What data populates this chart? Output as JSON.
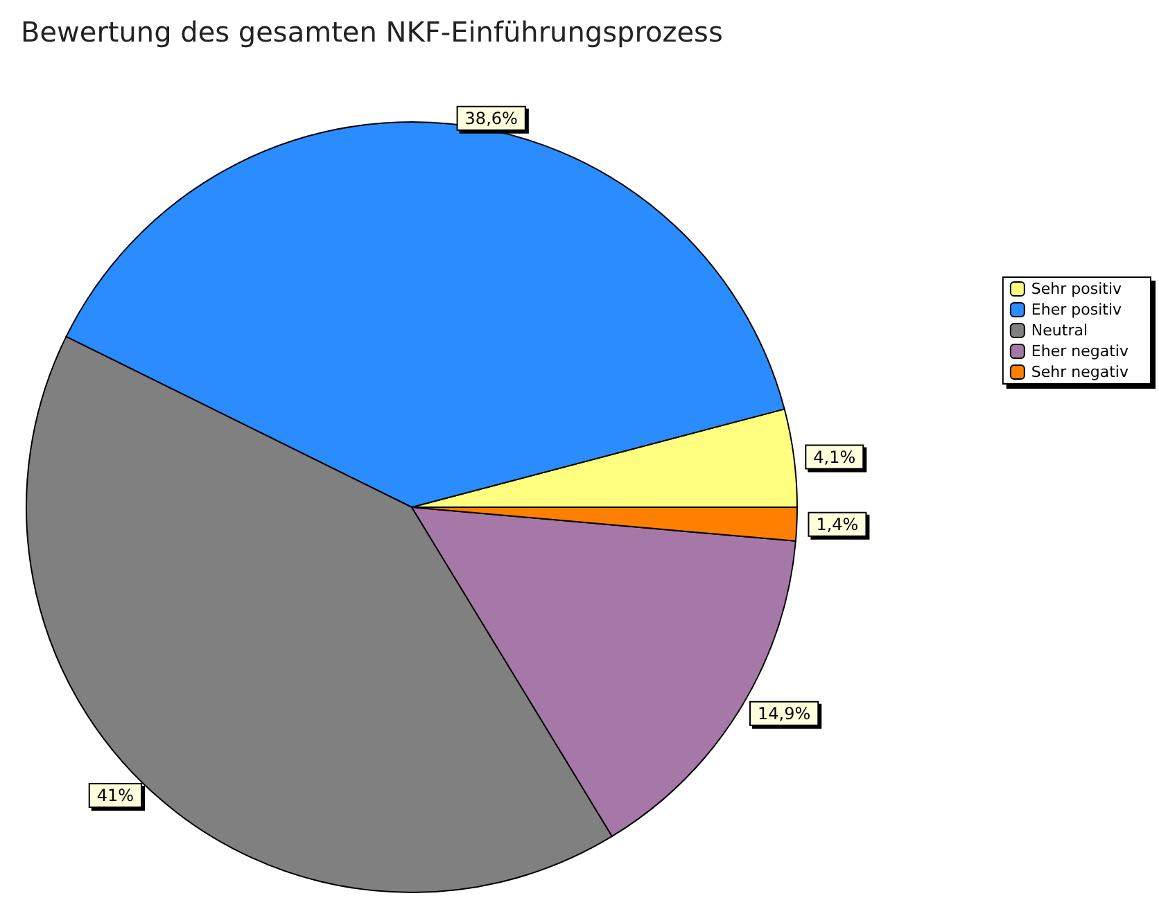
{
  "chart_data": {
    "type": "pie",
    "title": "Bewertung des gesamten NKF-Einführungsprozess",
    "categories": [
      "Sehr positiv",
      "Eher positiv",
      "Neutral",
      "Eher negativ",
      "Sehr negativ"
    ],
    "values": [
      4.1,
      38.6,
      41,
      14.9,
      1.4
    ],
    "colors": [
      "#ffff80",
      "#2a8cff",
      "#808080",
      "#a678a8",
      "#ff8000"
    ],
    "value_labels": [
      "4,1%",
      "38,6%",
      "41%",
      "14,9%",
      "1,4%"
    ],
    "legend": "right"
  }
}
